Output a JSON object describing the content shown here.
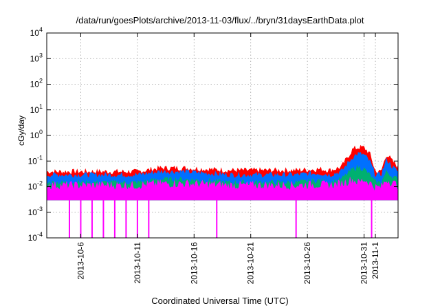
{
  "chart_data": {
    "type": "area",
    "title": "/data/run/goesPlots/archive/2013-11-03/flux/../bryn/31daysEarthData.plot",
    "xlabel": "Coordinated Universal Time (UTC)",
    "ylabel": "cGy/day",
    "yscale": "log",
    "ylim": [
      0.0001,
      10000
    ],
    "y_ticks": [
      {
        "value": 0.0001,
        "base": "10",
        "exp": "-4"
      },
      {
        "value": 0.001,
        "base": "10",
        "exp": "-3"
      },
      {
        "value": 0.01,
        "base": "10",
        "exp": "-2"
      },
      {
        "value": 0.1,
        "base": "10",
        "exp": "-1"
      },
      {
        "value": 1,
        "base": "10",
        "exp": "0"
      },
      {
        "value": 10,
        "base": "10",
        "exp": "1"
      },
      {
        "value": 100,
        "base": "10",
        "exp": "2"
      },
      {
        "value": 1000,
        "base": "10",
        "exp": "3"
      },
      {
        "value": 10000,
        "base": "10",
        "exp": "4"
      }
    ],
    "xlim": [
      "2013-10-03T00:00",
      "2013-11-03T00:00"
    ],
    "x_ticks": [
      {
        "date": "2013-10-06",
        "label": "2013-10-6"
      },
      {
        "date": "2013-10-11",
        "label": "2013-10-11"
      },
      {
        "date": "2013-10-16",
        "label": "2013-10-16"
      },
      {
        "date": "2013-10-21",
        "label": "2013-10-21"
      },
      {
        "date": "2013-10-26",
        "label": "2013-10-26"
      },
      {
        "date": "2013-10-31",
        "label": "2013-10-31"
      },
      {
        "date": "2013-11-01",
        "label": "2013-11-1"
      }
    ],
    "grid": true,
    "legend": "none",
    "series": [
      {
        "color": "#ff0000",
        "x": [
          "2013-10-03",
          "2013-10-05",
          "2013-10-07",
          "2013-10-09",
          "2013-10-11",
          "2013-10-13",
          "2013-10-15",
          "2013-10-17",
          "2013-10-19",
          "2013-10-21",
          "2013-10-23",
          "2013-10-25",
          "2013-10-27",
          "2013-10-28",
          "2013-10-29",
          "2013-10-30",
          "2013-10-30T12:00",
          "2013-10-31",
          "2013-10-31T12:00",
          "2013-11-01",
          "2013-11-01T12:00",
          "2013-11-02",
          "2013-11-02T12:00",
          "2013-11-03"
        ],
        "values": [
          0.04,
          0.04,
          0.04,
          0.04,
          0.04,
          0.055,
          0.055,
          0.05,
          0.045,
          0.045,
          0.045,
          0.045,
          0.05,
          0.045,
          0.06,
          0.3,
          0.35,
          0.35,
          0.2,
          0.04,
          0.04,
          0.2,
          0.1,
          0.06
        ]
      },
      {
        "color": "#0070ff",
        "x": [
          "2013-10-03",
          "2013-10-05",
          "2013-10-07",
          "2013-10-09",
          "2013-10-11",
          "2013-10-13",
          "2013-10-15",
          "2013-10-17",
          "2013-10-19",
          "2013-10-21",
          "2013-10-23",
          "2013-10-25",
          "2013-10-27",
          "2013-10-28",
          "2013-10-29",
          "2013-10-30",
          "2013-10-30T12:00",
          "2013-10-31",
          "2013-10-31T12:00",
          "2013-11-01",
          "2013-11-01T12:00",
          "2013-11-02",
          "2013-11-02T12:00",
          "2013-11-03"
        ],
        "values": [
          0.03,
          0.03,
          0.03,
          0.03,
          0.03,
          0.04,
          0.04,
          0.035,
          0.03,
          0.03,
          0.03,
          0.03,
          0.035,
          0.03,
          0.04,
          0.15,
          0.2,
          0.18,
          0.1,
          0.03,
          0.03,
          0.12,
          0.06,
          0.04
        ]
      },
      {
        "color": "#00b070",
        "x": [
          "2013-10-03",
          "2013-10-05",
          "2013-10-07",
          "2013-10-09",
          "2013-10-11",
          "2013-10-13",
          "2013-10-15",
          "2013-10-17",
          "2013-10-19",
          "2013-10-21",
          "2013-10-23",
          "2013-10-25",
          "2013-10-27",
          "2013-10-28",
          "2013-10-29",
          "2013-10-30",
          "2013-10-30T12:00",
          "2013-10-31",
          "2013-10-31T12:00",
          "2013-11-01",
          "2013-11-01T12:00",
          "2013-11-02",
          "2013-11-02T12:00",
          "2013-11-03"
        ],
        "values": [
          0.015,
          0.015,
          0.015,
          0.015,
          0.015,
          0.02,
          0.02,
          0.018,
          0.015,
          0.015,
          0.015,
          0.015,
          0.018,
          0.015,
          0.02,
          0.05,
          0.06,
          0.05,
          0.03,
          0.015,
          0.015,
          0.04,
          0.025,
          0.02
        ]
      },
      {
        "color": "#ff00ff",
        "x": [
          "2013-10-03",
          "2013-10-05",
          "2013-10-07",
          "2013-10-09",
          "2013-10-11",
          "2013-10-13",
          "2013-10-15",
          "2013-10-17",
          "2013-10-19",
          "2013-10-21",
          "2013-10-23",
          "2013-10-25",
          "2013-10-27",
          "2013-10-28",
          "2013-10-29",
          "2013-10-30",
          "2013-10-30T12:00",
          "2013-10-31",
          "2013-10-31T12:00",
          "2013-11-01",
          "2013-11-01T12:00",
          "2013-11-02",
          "2013-11-02T12:00",
          "2013-11-03"
        ],
        "values": [
          0.012,
          0.012,
          0.012,
          0.012,
          0.012,
          0.014,
          0.014,
          0.013,
          0.012,
          0.012,
          0.012,
          0.012,
          0.013,
          0.012,
          0.014,
          0.02,
          0.015,
          0.02,
          0.015,
          0.01,
          0.01,
          0.02,
          0.015,
          0.012
        ]
      }
    ],
    "floor_value": 0.003,
    "dropouts": [
      "2013-10-05",
      "2013-10-06",
      "2013-10-07",
      "2013-10-08",
      "2013-10-09",
      "2013-10-10",
      "2013-10-11",
      "2013-10-12",
      "2013-10-18",
      "2013-10-25",
      "2013-10-31T16:00"
    ]
  }
}
